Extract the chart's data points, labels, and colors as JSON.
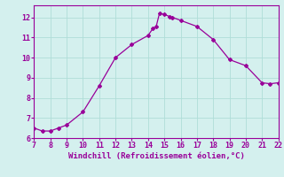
{
  "x": [
    7,
    7.5,
    8,
    8.5,
    9,
    10,
    11,
    12,
    13,
    14,
    14.3,
    14.5,
    14.7,
    15,
    15.3,
    15.5,
    16,
    17,
    18,
    19,
    20,
    21,
    21.5,
    22
  ],
  "y": [
    6.5,
    6.35,
    6.35,
    6.5,
    6.65,
    7.3,
    8.6,
    10.0,
    10.65,
    11.1,
    11.45,
    11.55,
    12.2,
    12.15,
    12.05,
    12.0,
    11.85,
    11.55,
    10.9,
    9.9,
    9.6,
    8.75,
    8.7,
    8.75
  ],
  "color": "#990099",
  "bg_color": "#d4f0ee",
  "grid_color": "#b0ddd8",
  "xlabel": "Windchill (Refroidissement éolien,°C)",
  "xlim": [
    7,
    22
  ],
  "ylim": [
    6,
    12.6
  ],
  "xticks": [
    7,
    8,
    9,
    10,
    11,
    12,
    13,
    14,
    15,
    16,
    17,
    18,
    19,
    20,
    21,
    22
  ],
  "yticks": [
    6,
    7,
    8,
    9,
    10,
    11,
    12
  ],
  "marker": "D",
  "markersize": 2.0,
  "linewidth": 0.9,
  "xlabel_fontsize": 6.5,
  "tick_fontsize": 6.0
}
